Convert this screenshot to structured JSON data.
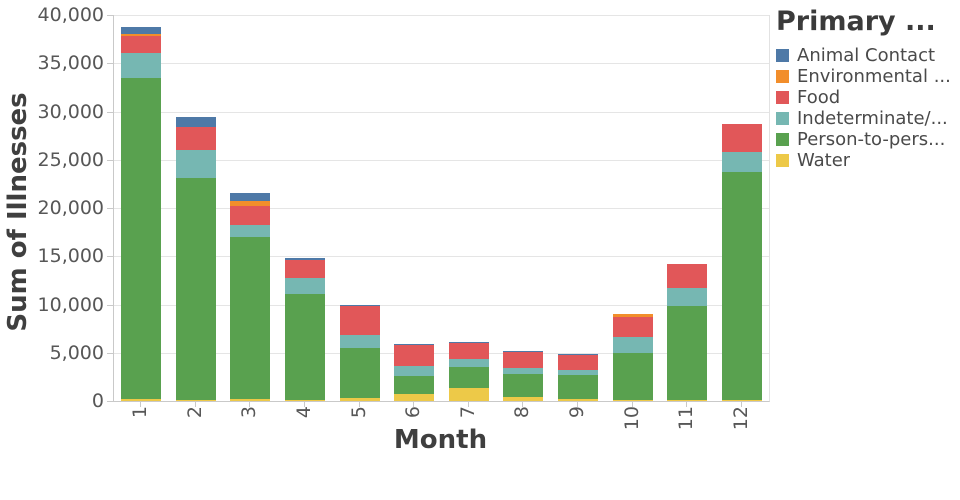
{
  "chart_data": {
    "type": "bar",
    "stacked": true,
    "xlabel": "Month",
    "ylabel": "Sum of Illnesses",
    "ylim": [
      0,
      40000
    ],
    "ytick_values": [
      0,
      5000,
      10000,
      15000,
      20000,
      25000,
      30000,
      35000,
      40000
    ],
    "ytick_labels": [
      "0",
      "5,000",
      "10,000",
      "15,000",
      "20,000",
      "25,000",
      "30,000",
      "35,000",
      "40,000"
    ],
    "grid": true,
    "categories": [
      "1",
      "2",
      "3",
      "4",
      "5",
      "6",
      "7",
      "8",
      "9",
      "10",
      "11",
      "12"
    ],
    "stack_order_bottom_to_top": [
      "Water",
      "Person-to-person",
      "Indeterminate/Other",
      "Food",
      "Environmental",
      "Animal Contact"
    ],
    "series": [
      {
        "name": "Animal Contact",
        "color": "#4E79A7",
        "values": [
          800,
          1000,
          900,
          200,
          150,
          100,
          100,
          100,
          100,
          0,
          0,
          0
        ]
      },
      {
        "name": "Environmental",
        "color": "#F28E2B",
        "values": [
          150,
          0,
          450,
          0,
          0,
          0,
          0,
          0,
          0,
          300,
          0,
          0
        ]
      },
      {
        "name": "Food",
        "color": "#E15759",
        "values": [
          1750,
          2400,
          2000,
          1900,
          3000,
          2250,
          1650,
          1600,
          1500,
          2100,
          2500,
          2900
        ]
      },
      {
        "name": "Indeterminate/Other",
        "color": "#76B7B2",
        "values": [
          2650,
          2900,
          1300,
          1600,
          1400,
          950,
          800,
          600,
          500,
          1600,
          1850,
          2100
        ]
      },
      {
        "name": "Person-to-person",
        "color": "#59A14F",
        "values": [
          33250,
          23000,
          16700,
          11000,
          5100,
          1900,
          2200,
          2450,
          2500,
          4850,
          9700,
          23550
        ]
      },
      {
        "name": "Water",
        "color": "#EDC948",
        "values": [
          200,
          100,
          250,
          100,
          350,
          750,
          1350,
          400,
          250,
          150,
          150,
          150
        ]
      }
    ],
    "totals": [
      38800,
      29400,
      21600,
      14800,
      10000,
      5950,
      6100,
      5150,
      4850,
      9000,
      14200,
      28700
    ],
    "legend": {
      "title": "Primary ...",
      "position": "right",
      "entries": [
        {
          "label": "Animal Contact",
          "series": "Animal Contact",
          "color": "#4E79A7"
        },
        {
          "label": "Environmental ...",
          "series": "Environmental",
          "color": "#F28E2B"
        },
        {
          "label": "Food",
          "series": "Food",
          "color": "#E15759"
        },
        {
          "label": "Indeterminate/...",
          "series": "Indeterminate/Other",
          "color": "#76B7B2"
        },
        {
          "label": "Person-to-pers...",
          "series": "Person-to-person",
          "color": "#59A14F"
        },
        {
          "label": "Water",
          "series": "Water",
          "color": "#EDC948"
        }
      ]
    }
  }
}
